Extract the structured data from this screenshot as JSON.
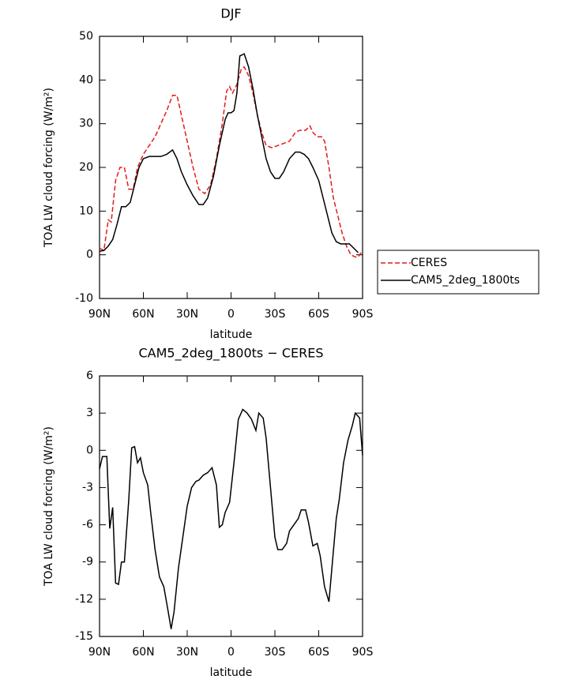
{
  "chart_data": [
    {
      "type": "line",
      "title": "DJF",
      "xlabel": "latitude",
      "ylabel": "TOA LW cloud forcing (W/m²)",
      "xlim": [
        90,
        -90
      ],
      "xticks": [
        {
          "value": 90,
          "label": "90N"
        },
        {
          "value": 60,
          "label": "60N"
        },
        {
          "value": 30,
          "label": "30N"
        },
        0,
        {
          "value": -30,
          "label": "30S"
        },
        {
          "value": -60,
          "label": "60S"
        },
        {
          "value": -90,
          "label": "90S"
        }
      ],
      "ylim": [
        -10,
        50
      ],
      "yticks": [
        -10,
        0,
        10,
        20,
        30,
        40,
        50
      ],
      "legend": "outside-right",
      "series": [
        {
          "name": "CERES",
          "color": "#e41a1c",
          "dash": true,
          "x": [
            90,
            87,
            84,
            82,
            79,
            76,
            73,
            70,
            67,
            64,
            60,
            56,
            52,
            48,
            44,
            40,
            37,
            34,
            30,
            26,
            22,
            18,
            14,
            10,
            6,
            3,
            1,
            -1,
            -4,
            -7,
            -9,
            -12,
            -15,
            -18,
            -21,
            -24,
            -28,
            -32,
            -36,
            -40,
            -44,
            -47,
            -51,
            -54,
            -56,
            -59,
            -62,
            -64,
            -67,
            -70,
            -73,
            -76,
            -79,
            -82,
            -85,
            -87,
            -89
          ],
          "values": [
            1.5,
            1,
            8,
            7.5,
            17,
            20,
            20,
            15,
            15,
            20,
            23,
            25,
            27,
            30,
            33,
            36.5,
            36.5,
            32,
            26,
            20,
            15,
            14,
            16,
            22,
            30,
            37.5,
            38.5,
            37,
            39,
            42.5,
            43,
            41,
            37,
            32,
            28,
            25,
            24.5,
            25,
            25.5,
            26,
            28,
            28.5,
            28.5,
            29.5,
            28,
            27,
            27,
            26,
            20,
            13,
            9,
            5,
            2,
            0,
            -0.5,
            -0.5,
            0.5
          ]
        },
        {
          "name": "CAM5_2deg_1800ts",
          "color": "#000000",
          "dash": false,
          "x": [
            90,
            87,
            84,
            81,
            78,
            75,
            72,
            69,
            66,
            63,
            60,
            56,
            52,
            48,
            44,
            40,
            37,
            34,
            30,
            26,
            22,
            19,
            16,
            12,
            8,
            4,
            2,
            0,
            -2,
            -4,
            -6,
            -9,
            -12,
            -15,
            -18,
            -21,
            -24,
            -27,
            -30,
            -33,
            -36,
            -40,
            -44,
            -47,
            -50,
            -53,
            -56,
            -60,
            -63,
            -66,
            -69,
            -72,
            -75,
            -78,
            -81,
            -84,
            -87
          ],
          "values": [
            0.8,
            1,
            2,
            3.5,
            7,
            11,
            11,
            12,
            16,
            20,
            22,
            22.5,
            22.5,
            22.5,
            23,
            24,
            22,
            19,
            16,
            13.5,
            11.5,
            11.5,
            13,
            18,
            25,
            31,
            32.5,
            32.5,
            33,
            37,
            45.5,
            46,
            43,
            38,
            32,
            27,
            22,
            19,
            17.5,
            17.5,
            19,
            22,
            23.5,
            23.5,
            23,
            22,
            20,
            17,
            13,
            9,
            5,
            3,
            2.5,
            2.5,
            2.5,
            1.5,
            0.5
          ]
        }
      ]
    },
    {
      "type": "line",
      "title": "CAM5_2deg_1800ts − CERES",
      "xlabel": "latitude",
      "ylabel": "TOA LW cloud forcing (W/m²)",
      "xlim": [
        90,
        -90
      ],
      "xticks": [
        {
          "value": 90,
          "label": "90N"
        },
        {
          "value": 60,
          "label": "60N"
        },
        {
          "value": 30,
          "label": "30N"
        },
        0,
        {
          "value": -30,
          "label": "30S"
        },
        {
          "value": -60,
          "label": "60S"
        },
        {
          "value": -90,
          "label": "90S"
        }
      ],
      "ylim": [
        -15,
        6
      ],
      "yticks": [
        -15,
        -12,
        -9,
        -6,
        -3,
        0,
        3,
        6
      ],
      "series": [
        {
          "color": "#000000",
          "dash": false,
          "x": [
            90,
            88,
            85,
            83,
            81,
            79,
            77,
            75,
            73,
            70,
            68,
            66,
            64,
            62,
            60,
            57,
            55,
            52,
            49,
            46,
            43,
            41,
            39,
            36,
            33,
            30,
            27,
            24,
            22,
            19,
            16,
            13,
            10,
            8,
            6,
            4,
            1,
            -2,
            -5,
            -8,
            -11,
            -14,
            -17,
            -19,
            -22,
            -24,
            -27,
            -30,
            -32,
            -35,
            -38,
            -40,
            -43,
            -46,
            -48,
            -51,
            -53,
            -56,
            -59,
            -61,
            -64,
            -67,
            -69,
            -72,
            -74,
            -77,
            -80,
            -83,
            -85,
            -88,
            -90
          ],
          "values": [
            -1.5,
            -0.5,
            -0.5,
            -6.3,
            -4.6,
            -10.7,
            -10.8,
            -9,
            -9,
            -4,
            0.2,
            0.3,
            -1,
            -0.6,
            -1.8,
            -2.8,
            -5,
            -8,
            -10.2,
            -11,
            -13,
            -14.4,
            -13,
            -9.5,
            -7,
            -4.5,
            -3,
            -2.5,
            -2.4,
            -2,
            -1.8,
            -1.4,
            -2.8,
            -6.2,
            -6,
            -5,
            -4.2,
            -1,
            2.5,
            3.3,
            3,
            2.5,
            1.6,
            3,
            2.6,
            1,
            -3,
            -7,
            -8,
            -8,
            -7.5,
            -6.5,
            -6,
            -5.5,
            -4.8,
            -4.8,
            -5.8,
            -7.7,
            -7.5,
            -8.5,
            -11,
            -12.2,
            -9.5,
            -5.5,
            -4,
            -1,
            0.8,
            2,
            3,
            2.6,
            -0.4
          ]
        }
      ]
    }
  ]
}
